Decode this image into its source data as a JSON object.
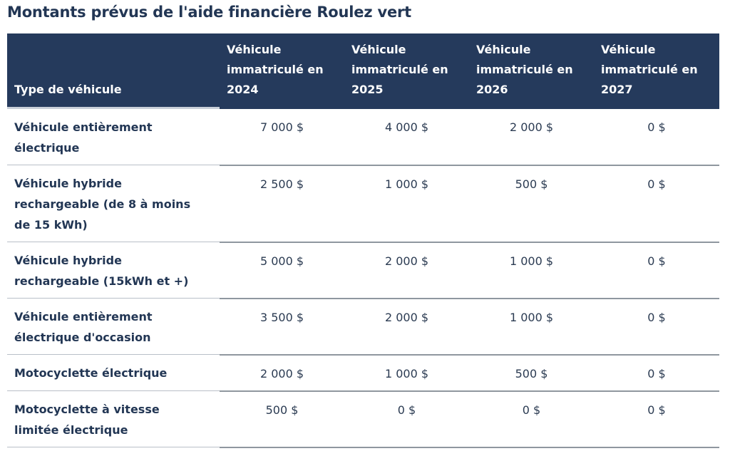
{
  "title": "Montants prévus de l'aide financière Roulez vert",
  "colors": {
    "header_background": "#253a5c",
    "header_text": "#ffffff",
    "body_text": "#223654",
    "divider_light": "#b9bfc8",
    "divider_dark": "#8f979f"
  },
  "table": {
    "columns": [
      {
        "id": "type",
        "lines": [
          "Type de véhicule"
        ]
      },
      {
        "id": "2024",
        "lines": [
          "Véhicule",
          "immatriculé en",
          "2024"
        ]
      },
      {
        "id": "2025",
        "lines": [
          "Véhicule",
          "immatriculé en",
          "2025"
        ]
      },
      {
        "id": "2026",
        "lines": [
          "Véhicule",
          "immatriculé en",
          "2026"
        ]
      },
      {
        "id": "2027",
        "lines": [
          "Véhicule",
          "immatriculé en",
          "2027"
        ]
      }
    ],
    "rows": [
      {
        "label_lines": [
          "Véhicule entièrement",
          "électrique"
        ],
        "values": [
          "7 000 $",
          "4 000 $",
          "2 000 $",
          "0 $"
        ]
      },
      {
        "label_lines": [
          "Véhicule hybride",
          "rechargeable (de 8 à moins",
          "de 15 kWh)"
        ],
        "values": [
          "2 500 $",
          "1 000 $",
          "500 $",
          "0 $"
        ]
      },
      {
        "label_lines": [
          "Véhicule hybride",
          "rechargeable (15kWh et +)"
        ],
        "values": [
          "5 000 $",
          "2 000 $",
          "1 000 $",
          "0 $"
        ]
      },
      {
        "label_lines": [
          "Véhicule entièrement",
          "électrique d'occasion"
        ],
        "values": [
          "3 500 $",
          "2 000 $",
          "1 000 $",
          "0 $"
        ]
      },
      {
        "label_lines": [
          "Motocyclette électrique"
        ],
        "values": [
          "2 000 $",
          "1 000 $",
          "500 $",
          "0 $"
        ]
      },
      {
        "label_lines": [
          "Motocyclette à vitesse",
          "limitée électrique"
        ],
        "values": [
          "500 $",
          "0 $",
          "0 $",
          "0 $"
        ]
      }
    ]
  }
}
